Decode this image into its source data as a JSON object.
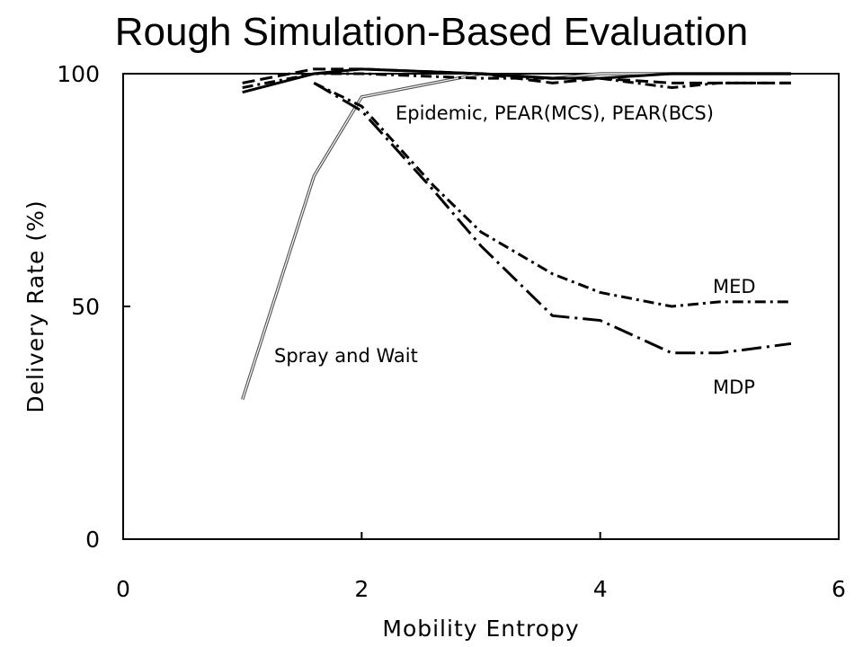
{
  "chart_data": {
    "type": "line",
    "title": "Rough Simulation-Based Evaluation",
    "xlabel": "Mobility Entropy",
    "ylabel": "Delivery Rate (%)",
    "xlim": [
      0,
      6
    ],
    "ylim": [
      0,
      100
    ],
    "xticks": [
      "0",
      "2",
      "4",
      "6"
    ],
    "yticks": [
      "0",
      "50",
      "100"
    ],
    "grid": false,
    "legend": "none",
    "series": [
      {
        "name": "Spray and Wait",
        "style": "double-thin",
        "color": "#555555",
        "x": [
          1.0,
          1.6,
          2.0,
          3.0,
          3.6,
          4.0,
          4.6,
          5.0,
          5.6
        ],
        "y": [
          30,
          78,
          95,
          100,
          99,
          100,
          100,
          100,
          100
        ]
      },
      {
        "name": "Epidemic",
        "style": "solid",
        "color": "#000000",
        "x": [
          1.0,
          1.6,
          2.0,
          3.0,
          3.6,
          4.0,
          4.6,
          5.0,
          5.6
        ],
        "y": [
          96,
          100,
          101,
          100,
          99,
          99,
          100,
          100,
          100
        ]
      },
      {
        "name": "PEAR(MCS)",
        "style": "dashed",
        "color": "#000000",
        "x": [
          1.0,
          1.6,
          2.0,
          3.0,
          3.6,
          4.0,
          4.6,
          5.0,
          5.6
        ],
        "y": [
          98,
          101,
          101,
          100,
          98,
          99,
          98,
          98,
          98
        ]
      },
      {
        "name": "PEAR(BCS)",
        "style": "dash-dot",
        "color": "#000000",
        "x": [
          1.0,
          1.6,
          2.0,
          3.0,
          3.6,
          4.0,
          4.6,
          5.0,
          5.6
        ],
        "y": [
          97,
          100,
          100,
          99,
          99,
          99,
          97,
          98,
          98
        ]
      },
      {
        "name": "MED",
        "style": "dash-dot",
        "color": "#000000",
        "x": [
          1.6,
          2.0,
          2.6,
          3.0,
          3.6,
          4.0,
          4.6,
          5.0,
          5.6
        ],
        "y": [
          98,
          93,
          76,
          66,
          57,
          53,
          50,
          51,
          51
        ]
      },
      {
        "name": "MDP",
        "style": "long-dash-dot",
        "color": "#000000",
        "x": [
          1.6,
          2.0,
          2.6,
          3.0,
          3.6,
          4.0,
          4.6,
          5.0,
          5.6
        ],
        "y": [
          98,
          92,
          75,
          63,
          48,
          47,
          40,
          40,
          42
        ]
      }
    ],
    "annotations": [
      {
        "text": "Epidemic, PEAR(MCS), PEAR(BCS)"
      },
      {
        "text": "MED"
      },
      {
        "text": "MDP"
      },
      {
        "text": "Spray and Wait"
      }
    ]
  }
}
